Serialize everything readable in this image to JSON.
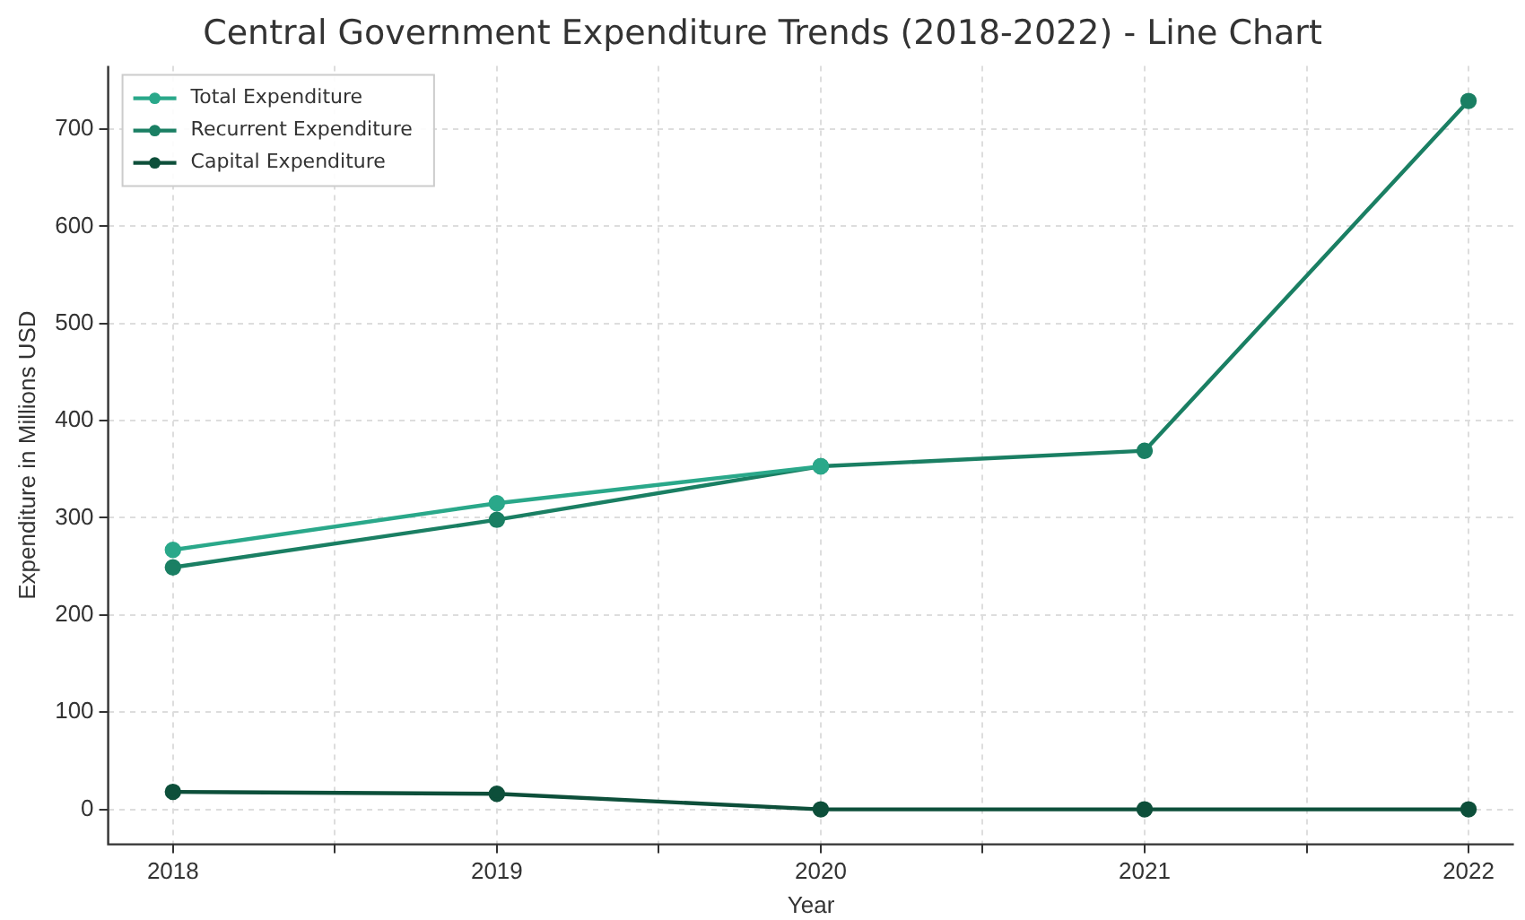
{
  "chart_data": {
    "type": "line",
    "title": "Central Government Expenditure Trends (2018-2022) - Line Chart",
    "xlabel": "Year",
    "ylabel": "Expenditure in Millions USD",
    "x": [
      2018,
      2019,
      2020,
      2021,
      2022
    ],
    "series": [
      {
        "name": "Total Expenditure",
        "color": "#2aa88a",
        "values": [
          267,
          315,
          353,
          null,
          null
        ]
      },
      {
        "name": "Recurrent Expenditure",
        "color": "#1a7f63",
        "values": [
          249,
          298,
          353,
          369,
          729
        ]
      },
      {
        "name": "Capital Expenditure",
        "color": "#0d4f3a",
        "values": [
          18,
          16,
          0,
          0,
          0
        ]
      }
    ],
    "xlim": [
      2017.8,
      2022.14
    ],
    "xticks": [
      2018,
      {
        "value": 2018.5,
        "label": null
      },
      2019,
      {
        "value": 2019.5,
        "label": null
      },
      2020,
      {
        "value": 2020.5,
        "label": null
      },
      2021,
      {
        "value": 2021.5,
        "label": null
      },
      2022
    ],
    "ylim": [
      -36,
      765
    ],
    "yticks": [
      0,
      100,
      200,
      300,
      400,
      500,
      600,
      700
    ],
    "grid": true,
    "legend": "top left",
    "marker": "circle",
    "line_style": "solid"
  }
}
